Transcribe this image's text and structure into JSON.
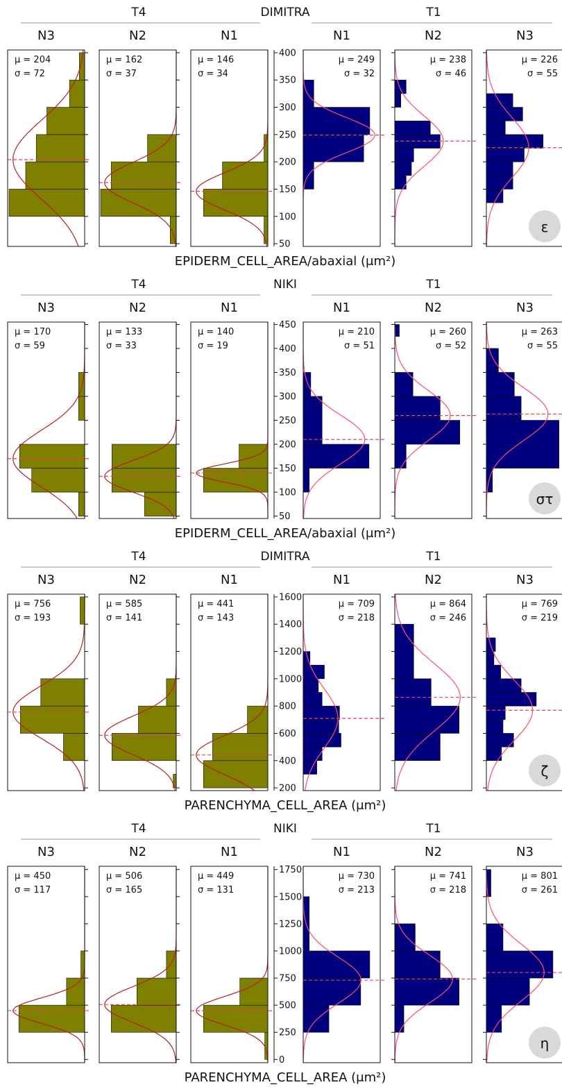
{
  "figure": {
    "columns": [
      "N3",
      "N2",
      "N1",
      "N1",
      "N2",
      "N3"
    ],
    "groups": [
      "T4",
      "T1"
    ]
  },
  "chart_data": [
    {
      "type": "histogram",
      "cultivar": "DIMITRA",
      "xlabel": "EPIDERM_CELL_AREA/abaxial (μm²)",
      "ylim": [
        45,
        405
      ],
      "ticks": [
        50,
        100,
        150,
        200,
        250,
        300,
        350,
        400
      ],
      "badge": "ε",
      "panels": [
        {
          "treatment": "T4",
          "label": "N3",
          "mu": "μ = 204",
          "sigma": "σ = 72",
          "mean": 204,
          "sd": 72,
          "peak": 0.93,
          "align": "left",
          "bins": [
            [
              100,
              150,
              1.0
            ],
            [
              150,
              200,
              0.78
            ],
            [
              200,
              250,
              0.64
            ],
            [
              250,
              300,
              0.5
            ],
            [
              300,
              350,
              0.2
            ],
            [
              350,
              400,
              0.07
            ]
          ]
        },
        {
          "treatment": "T4",
          "label": "N2",
          "mu": "μ = 162",
          "sigma": "σ = 37",
          "mean": 162,
          "sd": 37,
          "peak": 0.93,
          "align": "left",
          "bins": [
            [
              50,
              100,
              0.08
            ],
            [
              100,
              150,
              1.0
            ],
            [
              150,
              200,
              0.86
            ],
            [
              200,
              250,
              0.38
            ]
          ]
        },
        {
          "treatment": "T4",
          "label": "N1",
          "mu": "μ = 146",
          "sigma": "σ = 34",
          "mean": 146,
          "sd": 34,
          "peak": 0.93,
          "align": "left",
          "bins": [
            [
              50,
              100,
              0.05
            ],
            [
              100,
              150,
              0.85
            ],
            [
              150,
              200,
              0.6
            ],
            [
              200,
              250,
              0.05
            ]
          ]
        },
        {
          "treatment": "T1",
          "label": "N1",
          "mu": "μ = 249",
          "sigma": "σ = 32",
          "mean": 249,
          "sd": 32,
          "peak": 0.93,
          "align": "right",
          "bins": [
            [
              150,
              200,
              0.14
            ],
            [
              200,
              250,
              0.8
            ],
            [
              250,
              300,
              0.88
            ],
            [
              300,
              350,
              0.14
            ]
          ]
        },
        {
          "treatment": "T1",
          "label": "N2",
          "mu": "μ = 238",
          "sigma": "σ = 46",
          "mean": 238,
          "sd": 46,
          "peak": 0.63,
          "align": "right",
          "bins": [
            [
              150,
              175,
              0.15
            ],
            [
              175,
              200,
              0.22
            ],
            [
              200,
              225,
              0.25
            ],
            [
              225,
              250,
              0.6
            ],
            [
              250,
              275,
              0.47
            ],
            [
              300,
              325,
              0.08
            ],
            [
              325,
              350,
              0.15
            ]
          ]
        },
        {
          "treatment": "T1",
          "label": "N3",
          "mu": "μ = 226",
          "sigma": "σ = 55",
          "mean": 226,
          "sd": 55,
          "peak": 0.55,
          "align": "right",
          "bins": [
            [
              125,
              150,
              0.22
            ],
            [
              150,
              175,
              0.35
            ],
            [
              175,
              200,
              0.35
            ],
            [
              200,
              225,
              0.5
            ],
            [
              225,
              250,
              0.75
            ],
            [
              250,
              275,
              0.25
            ],
            [
              275,
              300,
              0.48
            ],
            [
              300,
              325,
              0.35
            ]
          ]
        }
      ]
    },
    {
      "type": "histogram",
      "cultivar": "NIKI",
      "xlabel": "EPIDERM_CELL_AREA/abaxial (μm²)",
      "ylim": [
        45,
        455
      ],
      "ticks": [
        50,
        100,
        150,
        200,
        250,
        300,
        350,
        400,
        450
      ],
      "badge": "στ",
      "panels": [
        {
          "treatment": "T4",
          "label": "N3",
          "mu": "μ = 170",
          "sigma": "σ = 59",
          "mean": 170,
          "sd": 59,
          "peak": 0.93,
          "align": "left",
          "bins": [
            [
              50,
              100,
              0.08
            ],
            [
              100,
              150,
              0.7
            ],
            [
              150,
              200,
              0.86
            ],
            [
              250,
              300,
              0.08
            ],
            [
              300,
              350,
              0.08
            ]
          ]
        },
        {
          "treatment": "T4",
          "label": "N2",
          "mu": "μ = 133",
          "sigma": "σ = 33",
          "mean": 133,
          "sd": 33,
          "peak": 0.93,
          "align": "left",
          "bins": [
            [
              50,
              100,
              0.42
            ],
            [
              100,
              150,
              0.85
            ],
            [
              150,
              200,
              0.85
            ]
          ]
        },
        {
          "treatment": "T4",
          "label": "N1",
          "mu": "μ = 140",
          "sigma": "σ = 19",
          "mean": 140,
          "sd": 19,
          "peak": 0.93,
          "align": "left",
          "bins": [
            [
              100,
              150,
              0.85
            ],
            [
              150,
              200,
              0.38
            ]
          ]
        },
        {
          "treatment": "T1",
          "label": "N1",
          "mu": "μ = 210",
          "sigma": "σ = 51",
          "mean": 210,
          "sd": 51,
          "peak": 0.8,
          "align": "right",
          "bins": [
            [
              100,
              150,
              0.08
            ],
            [
              150,
              200,
              0.87
            ],
            [
              200,
              300,
              0.25
            ],
            [
              300,
              350,
              0.1
            ]
          ]
        },
        {
          "treatment": "T1",
          "label": "N2",
          "mu": "μ = 260",
          "sigma": "σ = 52",
          "mean": 260,
          "sd": 52,
          "peak": 0.72,
          "align": "right",
          "bins": [
            [
              150,
              200,
              0.15
            ],
            [
              200,
              250,
              0.86
            ],
            [
              250,
              300,
              0.6
            ],
            [
              300,
              350,
              0.24
            ],
            [
              425,
              450,
              0.06
            ]
          ]
        },
        {
          "treatment": "T1",
          "label": "N3",
          "mu": "μ = 263",
          "sigma": "σ = 55",
          "mean": 263,
          "sd": 55,
          "peak": 0.8,
          "align": "right",
          "bins": [
            [
              100,
              150,
              0.08
            ],
            [
              150,
              250,
              0.96
            ],
            [
              250,
              300,
              0.46
            ],
            [
              300,
              350,
              0.37
            ],
            [
              350,
              400,
              0.16
            ]
          ]
        }
      ]
    },
    {
      "type": "histogram",
      "cultivar": "DIMITRA",
      "xlabel": "PARENCHYMA_CELL_AREA (μm²)",
      "ylim": [
        180,
        1620
      ],
      "ticks": [
        200,
        400,
        600,
        800,
        1000,
        1200,
        1400,
        1600
      ],
      "badge": "ζ",
      "panels": [
        {
          "treatment": "T4",
          "label": "N3",
          "mu": "μ = 756",
          "sigma": "σ = 193",
          "mean": 756,
          "sd": 193,
          "peak": 0.93,
          "align": "left",
          "bins": [
            [
              400,
              600,
              0.28
            ],
            [
              600,
              800,
              0.85
            ],
            [
              800,
              1000,
              0.58
            ],
            [
              1400,
              1600,
              0.06
            ]
          ]
        },
        {
          "treatment": "T4",
          "label": "N2",
          "mu": "μ = 585",
          "sigma": "σ = 141",
          "mean": 585,
          "sd": 141,
          "peak": 0.93,
          "align": "left",
          "bins": [
            [
              200,
              300,
              0.04
            ],
            [
              400,
              600,
              0.85
            ],
            [
              600,
              800,
              0.5
            ],
            [
              800,
              1000,
              0.13
            ]
          ]
        },
        {
          "treatment": "T4",
          "label": "N1",
          "mu": "μ = 441",
          "sigma": "σ = 143",
          "mean": 441,
          "sd": 143,
          "peak": 0.93,
          "align": "left",
          "bins": [
            [
              200,
              400,
              0.85
            ],
            [
              400,
              600,
              0.73
            ],
            [
              600,
              800,
              0.27
            ]
          ]
        },
        {
          "treatment": "T1",
          "label": "N1",
          "mu": "μ = 709",
          "sigma": "σ = 218",
          "mean": 709,
          "sd": 218,
          "peak": 0.45,
          "align": "right",
          "bins": [
            [
              300,
              400,
              0.18
            ],
            [
              400,
              500,
              0.25
            ],
            [
              500,
              600,
              0.5
            ],
            [
              600,
              700,
              0.47
            ],
            [
              700,
              800,
              0.48
            ],
            [
              800,
              900,
              0.25
            ],
            [
              900,
              1000,
              0.2
            ],
            [
              1000,
              1100,
              0.28
            ],
            [
              1100,
              1200,
              0.09
            ]
          ]
        },
        {
          "treatment": "T1",
          "label": "N2",
          "mu": "μ = 864",
          "sigma": "σ = 246",
          "mean": 864,
          "sd": 246,
          "peak": 0.85,
          "align": "right",
          "bins": [
            [
              400,
              600,
              0.6
            ],
            [
              600,
              800,
              0.85
            ],
            [
              800,
              1000,
              0.48
            ],
            [
              1000,
              1400,
              0.25
            ]
          ]
        },
        {
          "treatment": "T1",
          "label": "N3",
          "mu": "μ = 769",
          "sigma": "σ = 219",
          "mean": 769,
          "sd": 219,
          "peak": 0.6,
          "align": "right",
          "bins": [
            [
              400,
              500,
              0.2
            ],
            [
              500,
              600,
              0.36
            ],
            [
              600,
              700,
              0.22
            ],
            [
              700,
              800,
              0.25
            ],
            [
              800,
              900,
              0.66
            ],
            [
              900,
              1000,
              0.46
            ],
            [
              1000,
              1100,
              0.19
            ],
            [
              1100,
              1200,
              0.1
            ],
            [
              1200,
              1300,
              0.12
            ]
          ]
        }
      ]
    },
    {
      "type": "histogram",
      "cultivar": "NIKI",
      "xlabel": "PARENCHYMA_CELL_AREA (μm²)",
      "ylim": [
        -30,
        1780
      ],
      "ticks": [
        0,
        250,
        500,
        750,
        1000,
        1250,
        1500,
        1750
      ],
      "badge": "η",
      "panels": [
        {
          "treatment": "T4",
          "label": "N3",
          "mu": "μ = 450",
          "sigma": "σ = 117",
          "mean": 450,
          "sd": 117,
          "peak": 0.93,
          "align": "left",
          "bins": [
            [
              250,
              500,
              0.87
            ],
            [
              500,
              750,
              0.24
            ],
            [
              750,
              1000,
              0.05
            ]
          ]
        },
        {
          "treatment": "T4",
          "label": "N2",
          "mu": "μ = 506",
          "sigma": "σ = 165",
          "mean": 506,
          "sd": 165,
          "peak": 0.93,
          "align": "left",
          "bins": [
            [
              250,
              500,
              0.86
            ],
            [
              500,
              750,
              0.52
            ],
            [
              750,
              1000,
              0.13
            ]
          ]
        },
        {
          "treatment": "T4",
          "label": "N1",
          "mu": "μ = 449",
          "sigma": "σ = 131",
          "mean": 449,
          "sd": 131,
          "peak": 0.93,
          "align": "left",
          "bins": [
            [
              0,
              250,
              0.04
            ],
            [
              250,
              500,
              0.85
            ],
            [
              500,
              750,
              0.37
            ]
          ]
        },
        {
          "treatment": "T1",
          "label": "N1",
          "mu": "μ = 730",
          "sigma": "σ = 213",
          "mean": 730,
          "sd": 213,
          "peak": 0.75,
          "align": "right",
          "bins": [
            [
              250,
              500,
              0.34
            ],
            [
              500,
              750,
              0.76
            ],
            [
              750,
              1000,
              0.88
            ],
            [
              1000,
              1500,
              0.08
            ]
          ]
        },
        {
          "treatment": "T1",
          "label": "N2",
          "mu": "μ = 741",
          "sigma": "σ = 218",
          "mean": 741,
          "sd": 218,
          "peak": 0.75,
          "align": "right",
          "bins": [
            [
              250,
              500,
              0.12
            ],
            [
              500,
              750,
              0.85
            ],
            [
              750,
              1000,
              0.6
            ],
            [
              1000,
              1250,
              0.27
            ]
          ]
        },
        {
          "treatment": "T1",
          "label": "N3",
          "mu": "μ = 801",
          "sigma": "σ = 261",
          "mean": 801,
          "sd": 261,
          "peak": 0.75,
          "align": "right",
          "bins": [
            [
              250,
              500,
              0.2
            ],
            [
              500,
              750,
              0.57
            ],
            [
              750,
              1000,
              0.88
            ],
            [
              1000,
              1250,
              0.22
            ],
            [
              1500,
              1750,
              0.06
            ]
          ]
        }
      ]
    }
  ],
  "colors": {
    "t4_fill": "#7f7f00",
    "t1_fill": "#00007f",
    "t4_curve": "#b22222",
    "t1_curve": "#ff4d6a",
    "mean_line": "#e8455f",
    "badge_bg": "#d9d9d9",
    "divider": "#999999"
  }
}
